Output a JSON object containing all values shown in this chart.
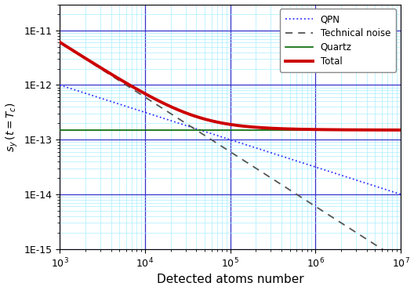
{
  "title": "",
  "xlabel": "Detected atoms number",
  "ylabel": "s_y (t=T_c)",
  "xmin": 1000.0,
  "xmax": 10000000.0,
  "ymin": 1e-15,
  "ymax": 3e-11,
  "quartz_level": 1.5e-13,
  "qpn_coeff": 3.16e-11,
  "tech_coeff": 3e-08,
  "bg_color": "#ffffff",
  "grid_major_color": "#3333cc",
  "grid_minor_color": "#aaeeff",
  "qpn_color": "#3333ff",
  "tech_color": "#555555",
  "quartz_color": "#006600",
  "total_color": "#cc0000",
  "legend_labels": [
    "QPN",
    "Technical noise",
    "Quartz",
    "Total"
  ]
}
